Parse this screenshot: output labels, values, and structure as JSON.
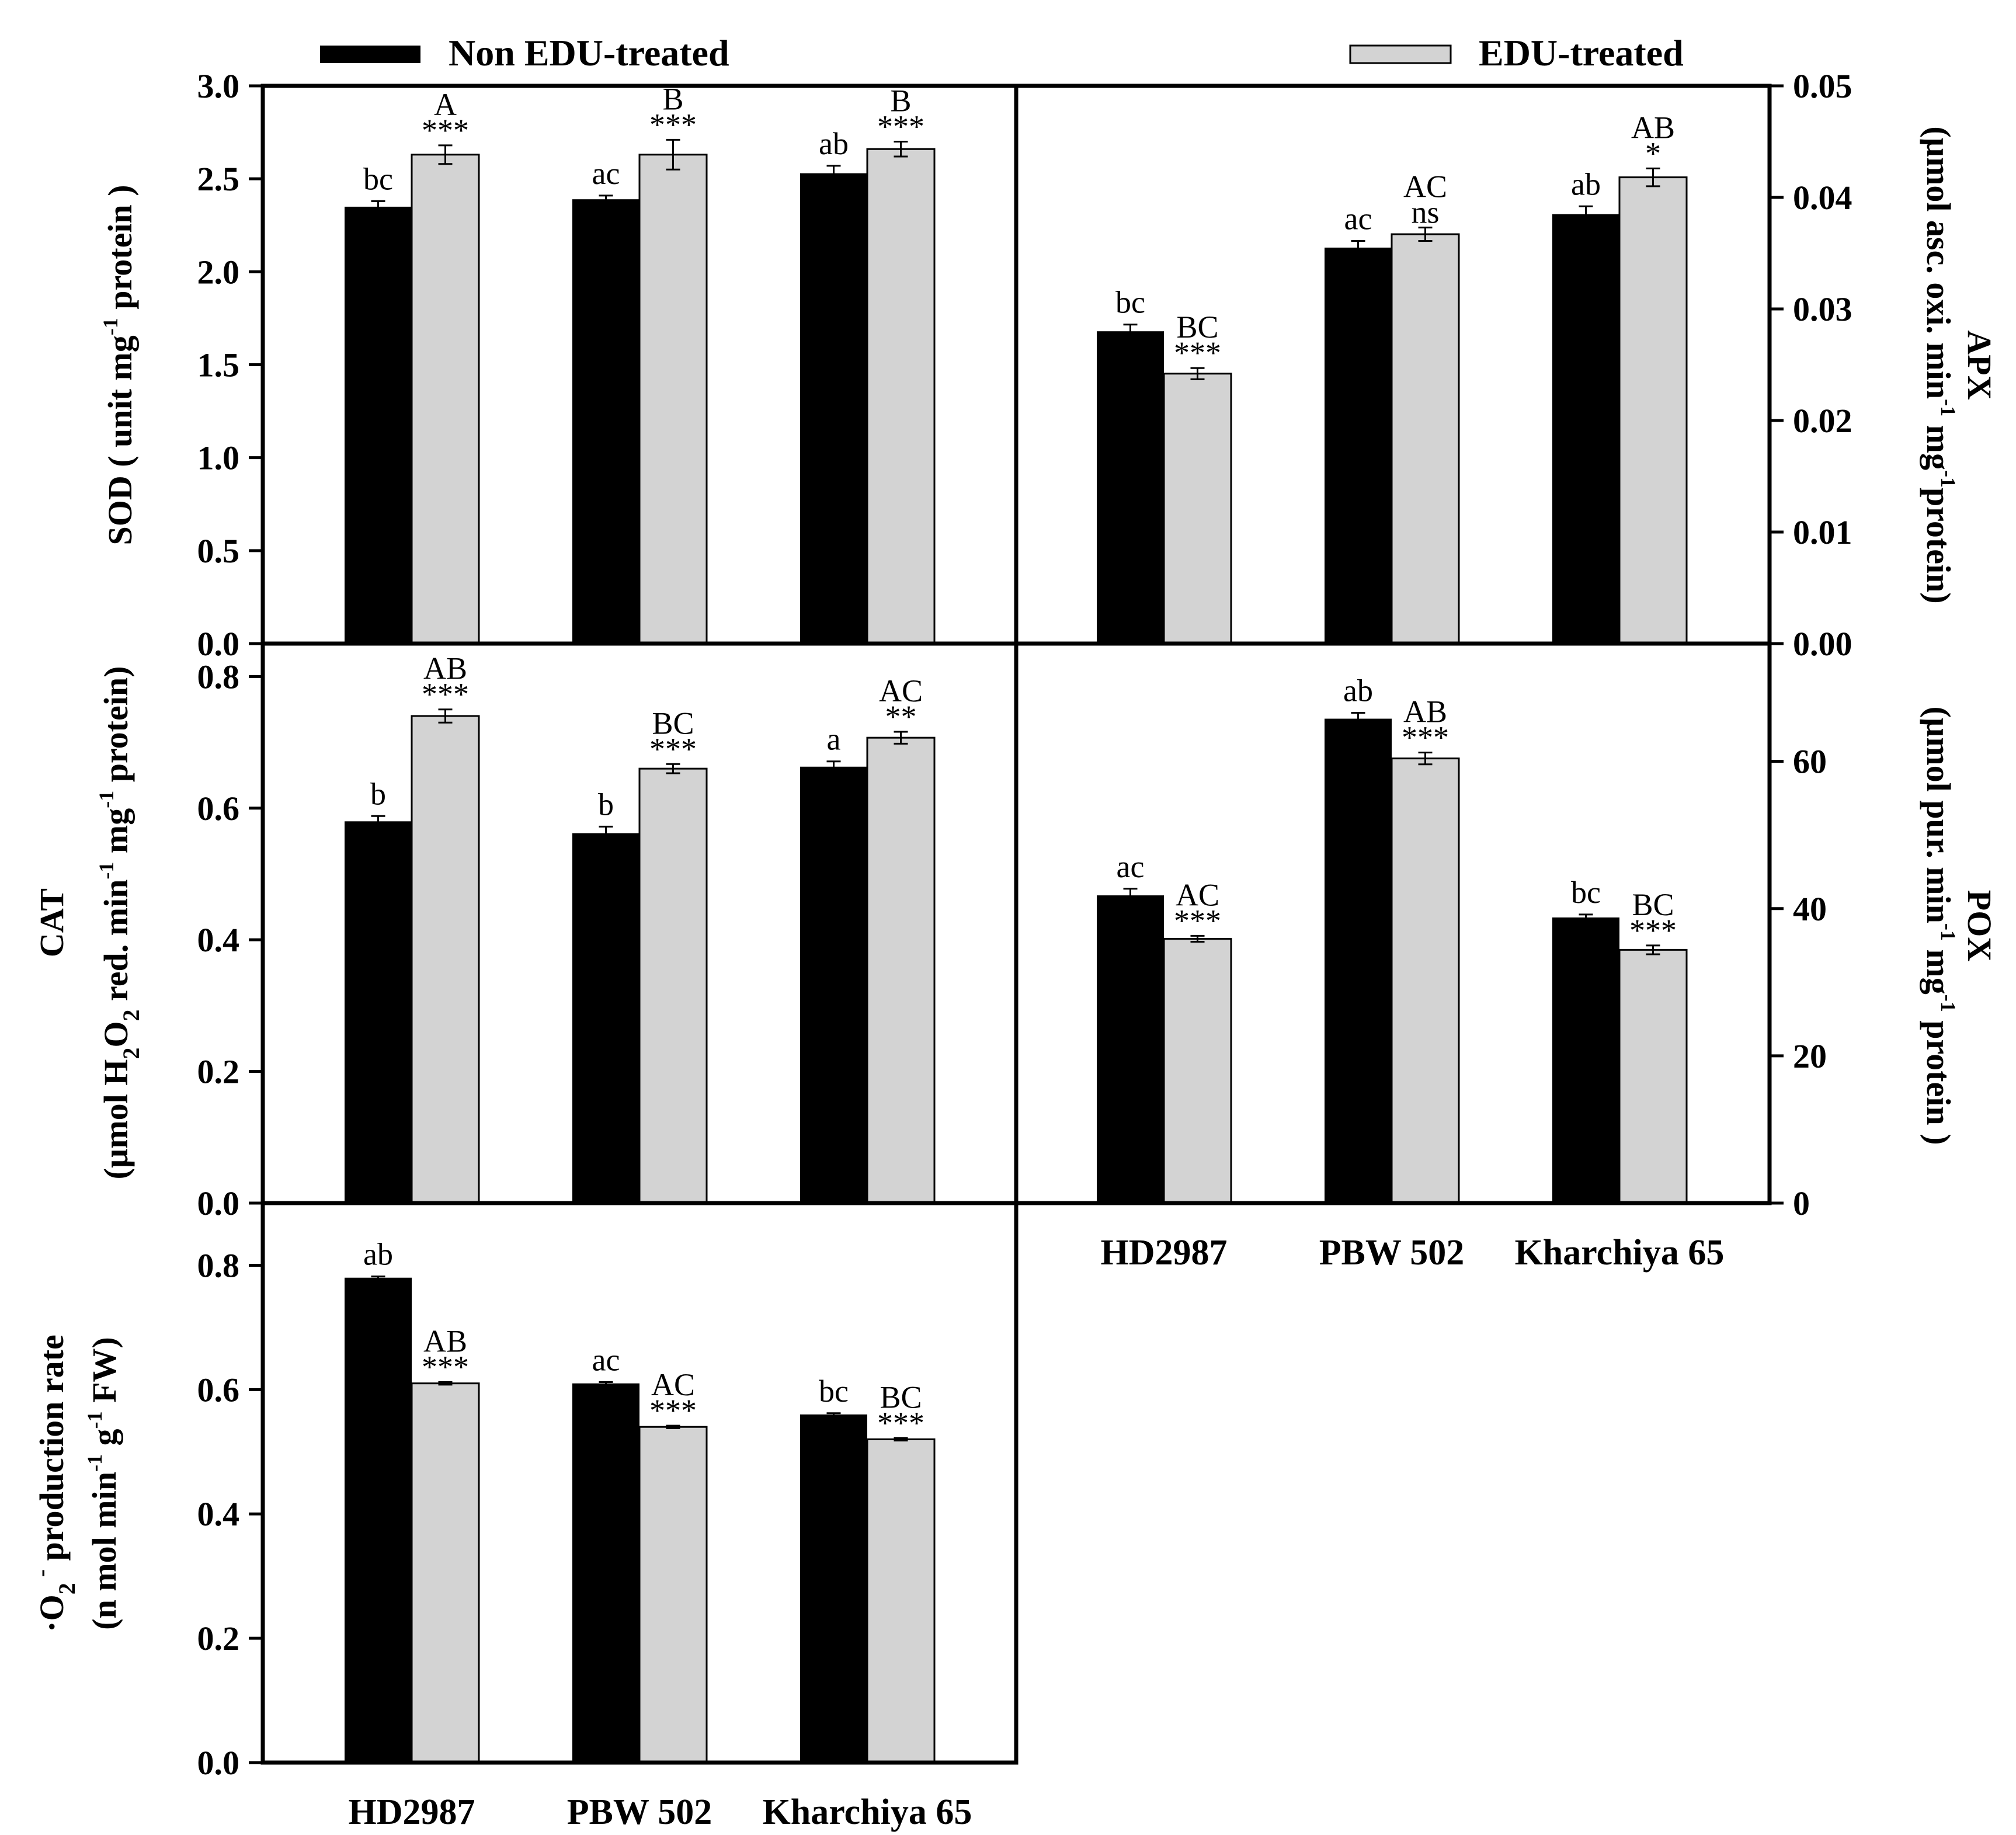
{
  "legend": [
    {
      "label": "Non EDU-treated",
      "color": "#000000"
    },
    {
      "label": "EDU-treated",
      "color": "#d3d3d3"
    }
  ],
  "colors": {
    "non_treated": "#000000",
    "treated": "#d3d3d3",
    "frame": "#000000"
  },
  "chart_data": [
    {
      "id": "sod",
      "type": "bar",
      "categories": [
        "HD2987",
        "PBW 502",
        "Kharchiya 65"
      ],
      "series": [
        {
          "name": "Non EDU-treated",
          "values": [
            2.35,
            2.39,
            2.53
          ],
          "errors": [
            0.03,
            0.02,
            0.04
          ],
          "letters": [
            "bc",
            "ac",
            "ab"
          ]
        },
        {
          "name": "EDU-treated",
          "values": [
            2.63,
            2.63,
            2.66
          ],
          "errors": [
            0.05,
            0.08,
            0.04
          ],
          "letters": [
            "A",
            "B",
            "B"
          ],
          "significance": [
            "***",
            "***",
            "***"
          ]
        }
      ],
      "ylim": [
        0,
        3.0
      ],
      "yticks": [
        0.0,
        0.5,
        1.0,
        1.5,
        2.0,
        2.5,
        3.0
      ],
      "ytick_labels": [
        "0.0",
        "0.5",
        "1.0",
        "1.5",
        "2.0",
        "2.5",
        "3.0"
      ],
      "ylabel": "SOD ( unit mg",
      "ylabel_sup": "-1",
      "ylabel_tail": " protein )"
    },
    {
      "id": "apx",
      "type": "bar",
      "categories": [
        "HD2987",
        "PBW 502",
        "Kharchiya 65"
      ],
      "series": [
        {
          "name": "Non EDU-treated",
          "values": [
            0.028,
            0.0355,
            0.0385
          ],
          "errors": [
            0.0006,
            0.0006,
            0.0007
          ],
          "letters": [
            "bc",
            "ac",
            "ab"
          ]
        },
        {
          "name": "EDU-treated",
          "values": [
            0.0242,
            0.0367,
            0.0418
          ],
          "errors": [
            0.0005,
            0.0006,
            0.0008
          ],
          "letters": [
            "BC",
            "AC",
            "AB"
          ],
          "significance": [
            "***",
            "ns",
            "*"
          ]
        }
      ],
      "ylim": [
        0,
        0.05
      ],
      "yticks": [
        0.0,
        0.01,
        0.02,
        0.03,
        0.04,
        0.05
      ],
      "ytick_labels": [
        "0.00",
        "0.01",
        "0.02",
        "0.03",
        "0.04",
        "0.05"
      ],
      "ylabel_line1": "APX",
      "ylabel_line2_a": "(µmol asc. oxi. min",
      "ylabel_line2_sup1": "-1",
      "ylabel_line2_b": " mg",
      "ylabel_line2_sup2": "-1",
      "ylabel_line2_c": "protein)"
    },
    {
      "id": "cat",
      "type": "bar",
      "categories": [
        "HD2987",
        "PBW 502",
        "Kharchiya 65"
      ],
      "series": [
        {
          "name": "Non EDU-treated",
          "values": [
            0.58,
            0.562,
            0.663
          ],
          "errors": [
            0.008,
            0.01,
            0.008
          ],
          "letters": [
            "b",
            "b",
            "a"
          ]
        },
        {
          "name": "EDU-treated",
          "values": [
            0.74,
            0.66,
            0.707
          ],
          "errors": [
            0.01,
            0.007,
            0.009
          ],
          "letters": [
            "AB",
            "BC",
            "AC"
          ],
          "significance": [
            "***",
            "***",
            "**"
          ]
        }
      ],
      "ylim": [
        0,
        0.85
      ],
      "yticks": [
        0.0,
        0.2,
        0.4,
        0.6,
        0.8
      ],
      "ytick_labels": [
        "0.0",
        "0.2",
        "0.4",
        "0.6",
        "0.8"
      ],
      "ylabel_line1": "CAT",
      "ylabel_line2_a": "(µmol H",
      "ylabel_line2_sub1": "2",
      "ylabel_line2_b": "O",
      "ylabel_line2_sub2": "2",
      "ylabel_line2_c": " red. min",
      "ylabel_line2_sup1": "-1",
      "ylabel_line2_d": " mg",
      "ylabel_line2_sup2": "-1",
      "ylabel_line2_e": " protein)"
    },
    {
      "id": "pox",
      "type": "bar",
      "categories": [
        "HD2987",
        "PBW 502",
        "Kharchiya 65"
      ],
      "series": [
        {
          "name": "Non EDU-treated",
          "values": [
            41.8,
            65.8,
            38.8
          ],
          "errors": [
            0.9,
            0.8,
            0.4
          ],
          "letters": [
            "ac",
            "ab",
            "bc"
          ]
        },
        {
          "name": "EDU-treated",
          "values": [
            35.9,
            60.4,
            34.4
          ],
          "errors": [
            0.4,
            0.8,
            0.6
          ],
          "letters": [
            "AC",
            "AB",
            "BC"
          ],
          "significance": [
            "***",
            "***",
            "***"
          ]
        }
      ],
      "ylim": [
        0,
        76
      ],
      "yticks": [
        0,
        20,
        40,
        60
      ],
      "ytick_labels": [
        "0",
        "20",
        "40",
        "60"
      ],
      "ylabel_line1": "POX",
      "ylabel_line2_a": "(µmol pur. min",
      "ylabel_line2_sup1": "-1",
      "ylabel_line2_b": " mg",
      "ylabel_line2_sup2": "-1",
      "ylabel_line2_c": " protein )",
      "xtick_labels": [
        "HD2987",
        "PBW 502",
        "Kharchiya 65"
      ]
    },
    {
      "id": "superoxide",
      "type": "bar",
      "categories": [
        "HD2987",
        "PBW 502",
        "Kharchiya 65"
      ],
      "series": [
        {
          "name": "Non EDU-treated",
          "values": [
            0.78,
            0.61,
            0.56
          ],
          "errors": [
            0.002,
            0.002,
            0.002
          ],
          "letters": [
            "ab",
            "ac",
            "bc"
          ]
        },
        {
          "name": "EDU-treated",
          "values": [
            0.61,
            0.54,
            0.52
          ],
          "errors": [
            0.002,
            0.002,
            0.002
          ],
          "letters": [
            "AB",
            "AC",
            "BC"
          ],
          "significance": [
            "***",
            "***",
            "***"
          ]
        }
      ],
      "ylim": [
        0,
        0.9
      ],
      "yticks": [
        0.0,
        0.2,
        0.4,
        0.6,
        0.8
      ],
      "ytick_labels": [
        "0.0",
        "0.2",
        "0.4",
        "0.6",
        "0.8"
      ],
      "ylabel_line1_a": "·O",
      "ylabel_line1_sub": "2",
      "ylabel_line1_sup": " -",
      "ylabel_line1_b": " production rate",
      "ylabel_line2_a": "(n mol min",
      "ylabel_line2_sup1": "-1",
      "ylabel_line2_b": " g",
      "ylabel_line2_sup2": "-1",
      "ylabel_line2_c": " FW)",
      "xtick_labels": [
        "HD2987",
        "PBW 502",
        "Kharchiya 65"
      ]
    }
  ]
}
